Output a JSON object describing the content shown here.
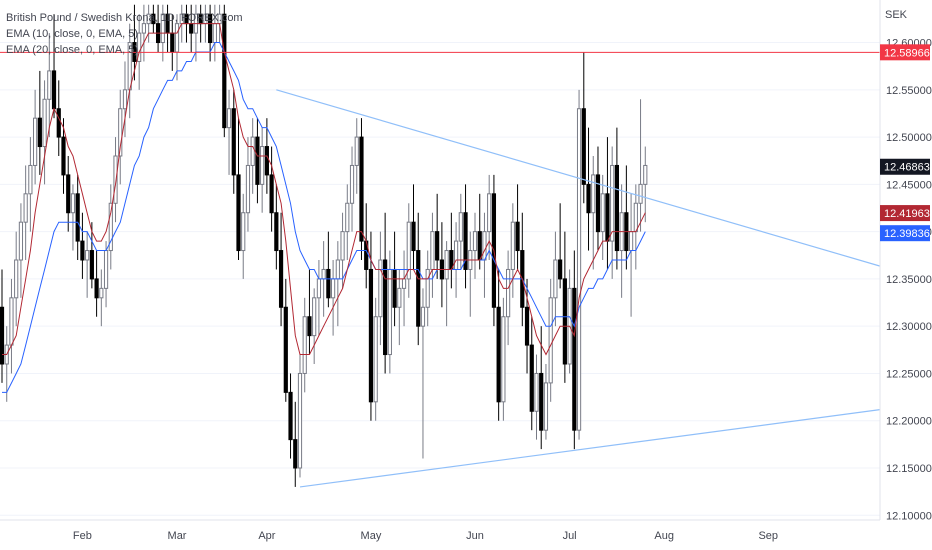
{
  "legend": {
    "symbol": "British Pound / Swedish Krona, 1D, FOREX.com",
    "ema10": "EMA (10, close, 0, EMA, 5)",
    "ema20": "EMA (20, close, 0, EMA, 5)"
  },
  "chart_data": {
    "type": "candlestick",
    "currency_label": "SEK",
    "ylim": [
      12.095,
      12.645
    ],
    "y_ticks": [
      "12.60000",
      "12.55000",
      "12.50000",
      "12.45000",
      "12.40000",
      "12.35000",
      "12.30000",
      "12.25000",
      "12.20000",
      "12.15000",
      "12.10000"
    ],
    "y_tick_values": [
      12.6,
      12.55,
      12.5,
      12.45,
      12.4,
      12.35,
      12.3,
      12.25,
      12.2,
      12.15,
      12.1
    ],
    "x_ticks": [
      "Feb",
      "Mar",
      "Apr",
      "May",
      "Jun",
      "Jul",
      "Aug",
      "Sep"
    ],
    "price_tags": [
      {
        "label": "12.58966",
        "value": 12.58966,
        "color": "#f23645"
      },
      {
        "label": "12.46863",
        "value": 12.46863,
        "color": "#131722"
      },
      {
        "label": "12.41963",
        "value": 12.41963,
        "color": "#b22833"
      },
      {
        "label": "12.39836",
        "value": 12.39836,
        "color": "#2962ff"
      }
    ],
    "horizontal_line": {
      "value": 12.58966,
      "color": "#f23645"
    },
    "trendlines": [
      {
        "name": "upper",
        "from_index": 58,
        "from_value": 12.55,
        "to_index": 186,
        "to_value": 12.363,
        "color": "#90bff9"
      },
      {
        "name": "lower",
        "from_index": 63,
        "from_value": 12.13,
        "to_index": 186,
        "to_value": 12.212,
        "color": "#90bff9"
      }
    ],
    "colors": {
      "up": "#787b86",
      "down": "#000000",
      "ema10": "#b22833",
      "ema20": "#2962ff"
    },
    "candles": [
      [
        12.32,
        12.36,
        12.24,
        12.26
      ],
      [
        12.26,
        12.3,
        12.22,
        12.28
      ],
      [
        12.28,
        12.35,
        12.25,
        12.33
      ],
      [
        12.33,
        12.4,
        12.3,
        12.37
      ],
      [
        12.37,
        12.43,
        12.33,
        12.41
      ],
      [
        12.41,
        12.47,
        12.37,
        12.44
      ],
      [
        12.44,
        12.5,
        12.4,
        12.47
      ],
      [
        12.47,
        12.55,
        12.45,
        12.52
      ],
      [
        12.52,
        12.57,
        12.46,
        12.49
      ],
      [
        12.49,
        12.56,
        12.45,
        12.54
      ],
      [
        12.54,
        12.61,
        12.5,
        12.57
      ],
      [
        12.57,
        12.63,
        12.52,
        12.53
      ],
      [
        12.53,
        12.56,
        12.48,
        12.5
      ],
      [
        12.5,
        12.52,
        12.44,
        12.46
      ],
      [
        12.46,
        12.48,
        12.4,
        12.42
      ],
      [
        12.42,
        12.45,
        12.38,
        12.44
      ],
      [
        12.44,
        12.46,
        12.37,
        12.39
      ],
      [
        12.39,
        12.42,
        12.35,
        12.37
      ],
      [
        12.37,
        12.4,
        12.33,
        12.38
      ],
      [
        12.38,
        12.41,
        12.34,
        12.35
      ],
      [
        12.35,
        12.38,
        12.31,
        12.33
      ],
      [
        12.33,
        12.36,
        12.3,
        12.34
      ],
      [
        12.34,
        12.39,
        12.32,
        12.38
      ],
      [
        12.38,
        12.45,
        12.36,
        12.43
      ],
      [
        12.43,
        12.5,
        12.41,
        12.48
      ],
      [
        12.48,
        12.55,
        12.45,
        12.53
      ],
      [
        12.53,
        12.58,
        12.5,
        12.55
      ],
      [
        12.55,
        12.62,
        12.52,
        12.6
      ],
      [
        12.6,
        12.64,
        12.56,
        12.58
      ],
      [
        12.58,
        12.63,
        12.55,
        12.61
      ],
      [
        12.61,
        12.64,
        12.58,
        12.62
      ],
      [
        12.62,
        12.64,
        12.6,
        12.63
      ],
      [
        12.63,
        12.64,
        12.61,
        12.62
      ],
      [
        12.62,
        12.64,
        12.59,
        12.6
      ],
      [
        12.6,
        12.64,
        12.58,
        12.63
      ],
      [
        12.63,
        12.64,
        12.59,
        12.61
      ],
      [
        12.61,
        12.63,
        12.57,
        12.59
      ],
      [
        12.59,
        12.63,
        12.56,
        12.62
      ],
      [
        12.62,
        12.64,
        12.6,
        12.63
      ],
      [
        12.63,
        12.64,
        12.6,
        12.62
      ],
      [
        12.62,
        12.64,
        12.59,
        12.61
      ],
      [
        12.61,
        12.64,
        12.58,
        12.63
      ],
      [
        12.63,
        12.64,
        12.6,
        12.62
      ],
      [
        12.62,
        12.64,
        12.6,
        12.63
      ],
      [
        12.63,
        12.64,
        12.58,
        12.6
      ],
      [
        12.6,
        12.64,
        12.58,
        12.62
      ],
      [
        12.62,
        12.64,
        12.6,
        12.63
      ],
      [
        12.63,
        12.64,
        12.5,
        12.51
      ],
      [
        12.51,
        12.55,
        12.46,
        12.53
      ],
      [
        12.53,
        12.55,
        12.44,
        12.46
      ],
      [
        12.46,
        12.52,
        12.37,
        12.38
      ],
      [
        12.38,
        12.44,
        12.35,
        12.42
      ],
      [
        12.42,
        12.5,
        12.4,
        12.47
      ],
      [
        12.47,
        12.52,
        12.44,
        12.5
      ],
      [
        12.5,
        12.52,
        12.43,
        12.45
      ],
      [
        12.45,
        12.51,
        12.42,
        12.49
      ],
      [
        12.49,
        12.52,
        12.44,
        12.46
      ],
      [
        12.46,
        12.49,
        12.4,
        12.42
      ],
      [
        12.42,
        12.45,
        12.36,
        12.38
      ],
      [
        12.38,
        12.42,
        12.3,
        12.32
      ],
      [
        12.32,
        12.35,
        12.22,
        12.23
      ],
      [
        12.23,
        12.25,
        12.16,
        12.18
      ],
      [
        12.18,
        12.22,
        12.13,
        12.15
      ],
      [
        12.15,
        12.27,
        12.14,
        12.25
      ],
      [
        12.25,
        12.33,
        12.23,
        12.31
      ],
      [
        12.31,
        12.36,
        12.27,
        12.29
      ],
      [
        12.29,
        12.34,
        12.26,
        12.33
      ],
      [
        12.33,
        12.37,
        12.29,
        12.35
      ],
      [
        12.35,
        12.39,
        12.31,
        12.36
      ],
      [
        12.36,
        12.4,
        12.32,
        12.33
      ],
      [
        12.33,
        12.37,
        12.29,
        12.35
      ],
      [
        12.35,
        12.39,
        12.3,
        12.37
      ],
      [
        12.37,
        12.42,
        12.34,
        12.4
      ],
      [
        12.4,
        12.45,
        12.37,
        12.43
      ],
      [
        12.43,
        12.49,
        12.4,
        12.47
      ],
      [
        12.47,
        12.52,
        12.44,
        12.5
      ],
      [
        12.5,
        12.52,
        12.37,
        12.39
      ],
      [
        12.39,
        12.43,
        12.34,
        12.36
      ],
      [
        12.36,
        12.4,
        12.2,
        12.22
      ],
      [
        12.22,
        12.33,
        12.2,
        12.31
      ],
      [
        12.31,
        12.4,
        12.28,
        12.37
      ],
      [
        12.37,
        12.42,
        12.25,
        12.27
      ],
      [
        12.27,
        12.38,
        12.25,
        12.36
      ],
      [
        12.36,
        12.4,
        12.3,
        12.32
      ],
      [
        12.32,
        12.36,
        12.28,
        12.34
      ],
      [
        12.34,
        12.38,
        12.3,
        12.35
      ],
      [
        12.35,
        12.43,
        12.33,
        12.41
      ],
      [
        12.41,
        12.45,
        12.36,
        12.38
      ],
      [
        12.38,
        12.42,
        12.28,
        12.3
      ],
      [
        12.3,
        12.34,
        12.16,
        12.32
      ],
      [
        12.32,
        12.38,
        12.3,
        12.36
      ],
      [
        12.36,
        12.42,
        12.33,
        12.4
      ],
      [
        12.4,
        12.44,
        12.35,
        12.37
      ],
      [
        12.37,
        12.41,
        12.32,
        12.35
      ],
      [
        12.35,
        12.39,
        12.3,
        12.38
      ],
      [
        12.38,
        12.42,
        12.34,
        12.36
      ],
      [
        12.36,
        12.41,
        12.33,
        12.39
      ],
      [
        12.39,
        12.44,
        12.36,
        12.42
      ],
      [
        12.42,
        12.45,
        12.34,
        12.36
      ],
      [
        12.36,
        12.4,
        12.31,
        12.38
      ],
      [
        12.38,
        12.42,
        12.35,
        12.4
      ],
      [
        12.4,
        12.44,
        12.36,
        12.37
      ],
      [
        12.37,
        12.42,
        12.33,
        12.4
      ],
      [
        12.4,
        12.46,
        12.37,
        12.44
      ],
      [
        12.44,
        12.46,
        12.3,
        12.32
      ],
      [
        12.32,
        12.36,
        12.2,
        12.22
      ],
      [
        12.22,
        12.33,
        12.2,
        12.31
      ],
      [
        12.31,
        12.38,
        12.28,
        12.36
      ],
      [
        12.36,
        12.43,
        12.33,
        12.41
      ],
      [
        12.41,
        12.45,
        12.36,
        12.38
      ],
      [
        12.38,
        12.42,
        12.3,
        12.32
      ],
      [
        12.32,
        12.35,
        12.25,
        12.28
      ],
      [
        12.28,
        12.31,
        12.19,
        12.21
      ],
      [
        12.21,
        12.27,
        12.18,
        12.25
      ],
      [
        12.25,
        12.3,
        12.17,
        12.19
      ],
      [
        12.19,
        12.26,
        12.18,
        12.24
      ],
      [
        12.24,
        12.35,
        12.22,
        12.33
      ],
      [
        12.33,
        12.4,
        12.3,
        12.37
      ],
      [
        12.37,
        12.43,
        12.34,
        12.35
      ],
      [
        12.35,
        12.4,
        12.24,
        12.26
      ],
      [
        12.26,
        12.36,
        12.25,
        12.34
      ],
      [
        12.34,
        12.38,
        12.17,
        12.19
      ],
      [
        12.19,
        12.55,
        12.18,
        12.53
      ],
      [
        12.53,
        12.59,
        12.43,
        12.45
      ],
      [
        12.45,
        12.51,
        12.38,
        12.42
      ],
      [
        12.42,
        12.48,
        12.36,
        12.46
      ],
      [
        12.46,
        12.49,
        12.38,
        12.4
      ],
      [
        12.4,
        12.46,
        12.37,
        12.44
      ],
      [
        12.44,
        12.5,
        12.36,
        12.39
      ],
      [
        12.39,
        12.49,
        12.35,
        12.47
      ],
      [
        12.47,
        12.51,
        12.36,
        12.38
      ],
      [
        12.38,
        12.45,
        12.33,
        12.42
      ],
      [
        12.42,
        12.47,
        12.36,
        12.38
      ],
      [
        12.38,
        12.44,
        12.31,
        12.4
      ],
      [
        12.4,
        12.45,
        12.36,
        12.43
      ],
      [
        12.43,
        12.54,
        12.4,
        12.45
      ],
      [
        12.45,
        12.49,
        12.41,
        12.47
      ]
    ],
    "ema10": [
      12.27,
      12.27,
      12.28,
      12.29,
      12.32,
      12.35,
      12.38,
      12.42,
      12.45,
      12.48,
      12.51,
      12.53,
      12.52,
      12.51,
      12.49,
      12.48,
      12.46,
      12.44,
      12.42,
      12.4,
      12.39,
      12.39,
      12.4,
      12.42,
      12.45,
      12.49,
      12.52,
      12.55,
      12.57,
      12.59,
      12.6,
      12.61,
      12.61,
      12.61,
      12.61,
      12.61,
      12.61,
      12.61,
      12.62,
      12.62,
      12.62,
      12.62,
      12.62,
      12.62,
      12.62,
      12.62,
      12.62,
      12.59,
      12.57,
      12.55,
      12.52,
      12.5,
      12.49,
      12.49,
      12.48,
      12.48,
      12.48,
      12.47,
      12.45,
      12.43,
      12.39,
      12.34,
      12.29,
      12.27,
      12.27,
      12.27,
      12.28,
      12.29,
      12.3,
      12.31,
      12.32,
      12.33,
      12.34,
      12.36,
      12.38,
      12.4,
      12.4,
      12.39,
      12.37,
      12.36,
      12.36,
      12.35,
      12.35,
      12.35,
      12.35,
      12.35,
      12.36,
      12.36,
      12.35,
      12.35,
      12.35,
      12.36,
      12.36,
      12.36,
      12.36,
      12.36,
      12.37,
      12.37,
      12.37,
      12.37,
      12.37,
      12.37,
      12.38,
      12.39,
      12.38,
      12.35,
      12.34,
      12.34,
      12.35,
      12.36,
      12.35,
      12.33,
      12.31,
      12.29,
      12.28,
      12.27,
      12.28,
      12.29,
      12.3,
      12.3,
      12.3,
      12.29,
      12.33,
      12.35,
      12.36,
      12.37,
      12.38,
      12.39,
      12.39,
      12.4,
      12.4,
      12.4,
      12.4,
      12.4,
      12.4,
      12.41,
      12.42
    ],
    "ema20": [
      12.23,
      12.23,
      12.24,
      12.25,
      12.26,
      12.28,
      12.3,
      12.32,
      12.34,
      12.36,
      12.38,
      12.4,
      12.41,
      12.41,
      12.41,
      12.41,
      12.41,
      12.4,
      12.4,
      12.39,
      12.38,
      12.38,
      12.38,
      12.39,
      12.4,
      12.41,
      12.43,
      12.45,
      12.47,
      12.48,
      12.5,
      12.51,
      12.53,
      12.54,
      12.55,
      12.56,
      12.56,
      12.57,
      12.57,
      12.58,
      12.58,
      12.59,
      12.59,
      12.59,
      12.59,
      12.6,
      12.6,
      12.59,
      12.58,
      12.57,
      12.56,
      12.54,
      12.53,
      12.53,
      12.52,
      12.51,
      12.51,
      12.5,
      12.49,
      12.47,
      12.45,
      12.43,
      12.4,
      12.38,
      12.37,
      12.36,
      12.36,
      12.35,
      12.35,
      12.35,
      12.35,
      12.35,
      12.35,
      12.36,
      12.37,
      12.38,
      12.38,
      12.38,
      12.37,
      12.36,
      12.36,
      12.36,
      12.36,
      12.36,
      12.36,
      12.36,
      12.36,
      12.36,
      12.36,
      12.35,
      12.35,
      12.35,
      12.36,
      12.36,
      12.36,
      12.36,
      12.36,
      12.36,
      12.37,
      12.37,
      12.37,
      12.37,
      12.37,
      12.38,
      12.37,
      12.36,
      12.35,
      12.35,
      12.35,
      12.35,
      12.35,
      12.34,
      12.33,
      12.32,
      12.31,
      12.3,
      12.3,
      12.31,
      12.31,
      12.31,
      12.31,
      12.3,
      12.32,
      12.33,
      12.34,
      12.34,
      12.35,
      12.35,
      12.36,
      12.37,
      12.37,
      12.37,
      12.37,
      12.38,
      12.38,
      12.39,
      12.4
    ]
  }
}
